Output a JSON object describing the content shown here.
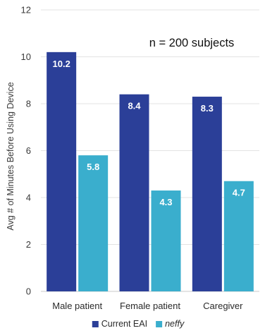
{
  "chart_data": {
    "type": "bar",
    "categories": [
      "Male patient",
      "Female patient",
      "Caregiver"
    ],
    "series": [
      {
        "name": "Current EAI",
        "values": [
          10.2,
          8.4,
          8.3
        ],
        "color": "#2b3f98"
      },
      {
        "name": "neffy",
        "values": [
          5.8,
          4.3,
          4.7
        ],
        "color": "#3aaecd"
      }
    ],
    "ylabel": "Avg # of Minutes Before Using Device",
    "xlabel": "",
    "ylim": [
      0,
      12
    ],
    "yticks": [
      0,
      2,
      4,
      6,
      8,
      10,
      12
    ],
    "data_labels": [
      [
        "10.2",
        "8.4",
        "8.3"
      ],
      [
        "5.8",
        "4.3",
        "4.7"
      ]
    ],
    "annotation": "n = 200 subjects",
    "grid": true,
    "legend": "bottom"
  }
}
